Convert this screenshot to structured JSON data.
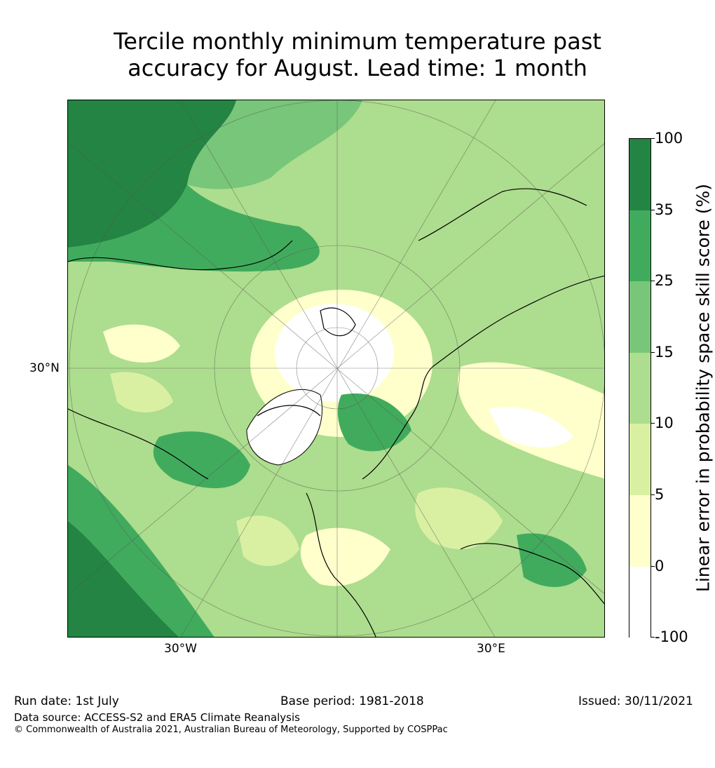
{
  "title": {
    "line1": "Tercile monthly minimum temperature past",
    "line2": "accuracy for August. Lead time: 1 month"
  },
  "map": {
    "projection": "north polar stereographic",
    "lat_labels": [
      "30°N"
    ],
    "lon_labels": [
      "30°W",
      "30°E"
    ],
    "colors": {
      "water_white": "#ffffff",
      "c_neg": "#ffffff",
      "c_0_5": "#ffffcc",
      "c_5_10": "#d9f0a3",
      "c_10_15": "#addd8e",
      "c_15_25": "#78c679",
      "c_25_35": "#41ab5d",
      "c_35_100": "#238443"
    }
  },
  "colorbar": {
    "label": "Linear error in probability space skill score (%)",
    "ticks": [
      "100",
      "35",
      "25",
      "15",
      "10",
      "5",
      "0",
      "-100"
    ],
    "colors": [
      "#238443",
      "#41ab5d",
      "#78c679",
      "#addd8e",
      "#d9f0a3",
      "#ffffcc",
      "#ffffff"
    ]
  },
  "footer": {
    "run_date": "Run date: 1st July",
    "base_period": "Base period: 1981-2018",
    "issued": "Issued: 30/11/2021",
    "data_source": "Data source: ACCESS-S2 and ERA5 Climate Reanalysis",
    "copyright": "© Commonwealth of Australia 2021, Australian Bureau of Meteorology, Supported by COSPPac"
  }
}
